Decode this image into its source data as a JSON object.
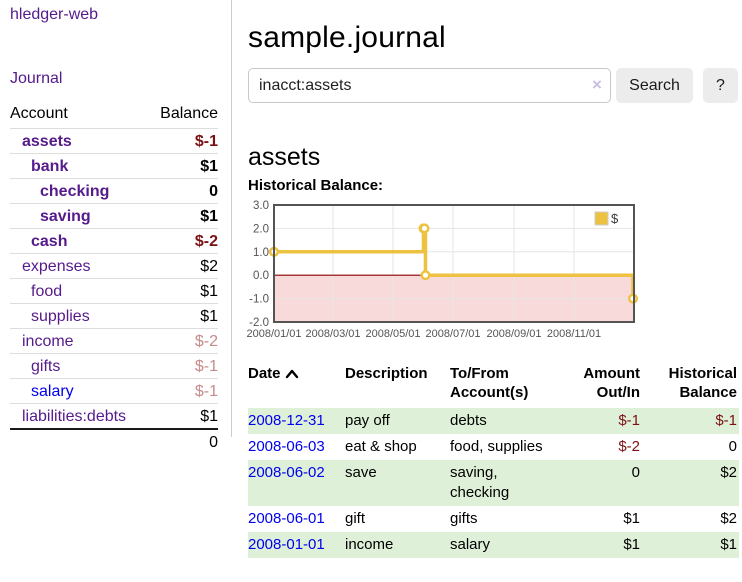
{
  "colors": {
    "purple_link": "#551a8b",
    "blue_link": "#0000ee",
    "negative_strong": "#7b1113",
    "negative_soft": "#c68b8b",
    "row_stripe_green": "#dff0d8",
    "series_yellow": "#edc240"
  },
  "sidebar": {
    "brand": "hledger-web",
    "nav_journal": "Journal",
    "table": {
      "headers": {
        "account": "Account",
        "balance": "Balance"
      },
      "rows": [
        {
          "account": "assets",
          "balance": "$-1",
          "depth": 1,
          "matched": true,
          "balance_tone": "neg-strong",
          "link_tone": "purple"
        },
        {
          "account": "bank",
          "balance": "$1",
          "depth": 2,
          "matched": true,
          "balance_tone": "",
          "link_tone": "purple"
        },
        {
          "account": "checking",
          "balance": "0",
          "depth": 3,
          "matched": true,
          "balance_tone": "",
          "link_tone": "purple"
        },
        {
          "account": "saving",
          "balance": "$1",
          "depth": 3,
          "matched": true,
          "balance_tone": "",
          "link_tone": "purple"
        },
        {
          "account": "cash",
          "balance": "$-2",
          "depth": 2,
          "matched": true,
          "balance_tone": "neg-strong",
          "link_tone": "purple"
        },
        {
          "account": "expenses",
          "balance": "$2",
          "depth": 1,
          "matched": false,
          "balance_tone": "",
          "link_tone": "purple"
        },
        {
          "account": "food",
          "balance": "$1",
          "depth": 2,
          "matched": false,
          "balance_tone": "",
          "link_tone": "purple"
        },
        {
          "account": "supplies",
          "balance": "$1",
          "depth": 2,
          "matched": false,
          "balance_tone": "",
          "link_tone": "purple"
        },
        {
          "account": "income",
          "balance": "$-2",
          "depth": 1,
          "matched": false,
          "balance_tone": "neg-soft",
          "link_tone": "purple"
        },
        {
          "account": "gifts",
          "balance": "$-1",
          "depth": 2,
          "matched": false,
          "balance_tone": "neg-soft",
          "link_tone": "purple"
        },
        {
          "account": "salary",
          "balance": "$-1",
          "depth": 2,
          "matched": false,
          "balance_tone": "neg-soft",
          "link_tone": "blue"
        },
        {
          "account": "liabilities:debts",
          "balance": "$1",
          "depth": 1,
          "matched": false,
          "balance_tone": "",
          "link_tone": "purple"
        }
      ],
      "total": "0"
    }
  },
  "main": {
    "title": "sample.journal",
    "search": {
      "value": "inacct:assets",
      "clear_icon": "×",
      "button_label": "Search",
      "help_label": "?"
    },
    "account_heading": "assets",
    "chart_label": "Historical Balance:",
    "register": {
      "headers": {
        "date": "Date",
        "description": "Description",
        "accounts": "To/From Account(s)",
        "amount": "Amount Out/In",
        "balance": "Historical Balance"
      },
      "sort": {
        "column": "date",
        "direction": "ascending"
      },
      "rows": [
        {
          "date": "2008-12-31",
          "description": "pay off",
          "accounts": "debts",
          "amount": "$-1",
          "amount_tone": "neg-strong",
          "balance": "$-1",
          "balance_tone": "neg-strong",
          "stripe": true
        },
        {
          "date": "2008-06-03",
          "description": "eat & shop",
          "accounts": "food, supplies",
          "amount": "$-2",
          "amount_tone": "neg-strong",
          "balance": "0",
          "balance_tone": "",
          "stripe": false
        },
        {
          "date": "2008-06-02",
          "description": "save",
          "accounts": "saving, checking",
          "amount": "0",
          "amount_tone": "",
          "balance": "$2",
          "balance_tone": "",
          "stripe": true
        },
        {
          "date": "2008-06-01",
          "description": "gift",
          "accounts": "gifts",
          "amount": "$1",
          "amount_tone": "",
          "balance": "$2",
          "balance_tone": "",
          "stripe": false
        },
        {
          "date": "2008-01-01",
          "description": "income",
          "accounts": "salary",
          "amount": "$1",
          "amount_tone": "",
          "balance": "$1",
          "balance_tone": "",
          "stripe": true
        }
      ]
    }
  },
  "chart_data": {
    "type": "line",
    "title": "Historical Balance:",
    "step": true,
    "series": [
      {
        "name": "$",
        "color": "#edc240",
        "points": [
          {
            "date": "2008-01-01",
            "day": 0,
            "value": 1
          },
          {
            "date": "2008-06-01",
            "day": 152,
            "value": 2
          },
          {
            "date": "2008-06-02",
            "day": 153,
            "value": 2
          },
          {
            "date": "2008-06-03",
            "day": 154,
            "value": 0
          },
          {
            "date": "2008-12-31",
            "day": 365,
            "value": -1
          }
        ]
      }
    ],
    "x_axis": {
      "min_day": 0,
      "max_day": 366,
      "ticks": [
        {
          "day": 0,
          "label": "2008/01/01"
        },
        {
          "day": 60,
          "label": "2008/03/01"
        },
        {
          "day": 121,
          "label": "2008/05/01"
        },
        {
          "day": 182,
          "label": "2008/07/01"
        },
        {
          "day": 244,
          "label": "2008/09/01"
        },
        {
          "day": 305,
          "label": "2008/11/01"
        }
      ]
    },
    "y_axis": {
      "min": -2,
      "max": 3,
      "tick_step": 1
    },
    "grid": true,
    "legend": {
      "position": "top-right",
      "label": "$"
    },
    "styles": {
      "zero_line_color": "#8b0000",
      "negative_region_color": "#f9dada",
      "plot_border_color": "#545454",
      "grid_color": "#e6e6e6",
      "marker_fill": "#ffffff",
      "tick_label_color": "#545454",
      "legend_box_border": "#cccccc"
    }
  }
}
